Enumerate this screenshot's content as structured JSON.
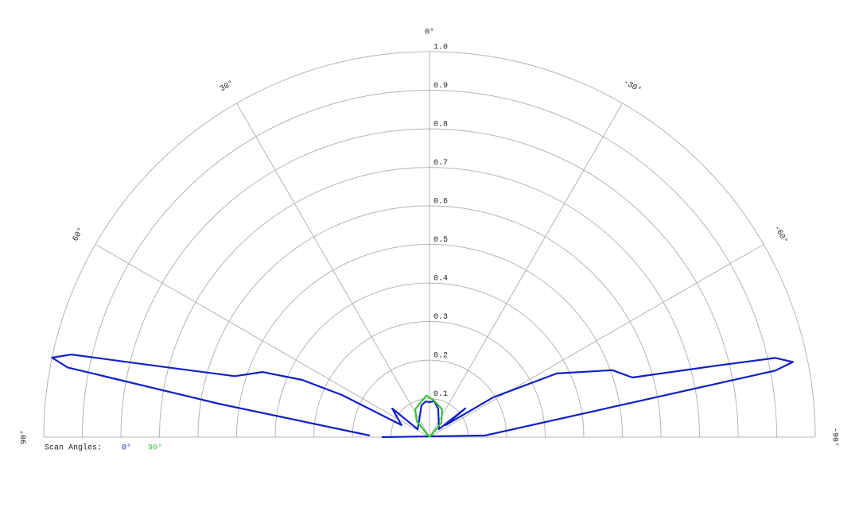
{
  "chart_data": {
    "type": "polar",
    "angle_ticks": [
      {
        "value": 90,
        "label": "90°"
      },
      {
        "value": 60,
        "label": "60°"
      },
      {
        "value": 30,
        "label": "30°"
      },
      {
        "value": 0,
        "label": "0°"
      },
      {
        "value": -30,
        "label": "-30°"
      },
      {
        "value": -60,
        "label": "-60°"
      },
      {
        "value": -90,
        "label": "-90°"
      }
    ],
    "rlim": [
      0,
      1
    ],
    "rticks": [
      0.1,
      0.2,
      0.3,
      0.4,
      0.5,
      0.6,
      0.7,
      0.8,
      0.9,
      {
        "value": 1,
        "label": "1.0"
      }
    ],
    "legend_title": "Scan Angles:",
    "series": [
      {
        "name": "0°",
        "color": "#1020c8",
        "angles": [
          88.5,
          81.0,
          79.1,
          78.1,
          77.0,
          75.1,
          72.6,
          68.7,
          65.8,
          64.3,
          66.8,
          52.5,
          56.3,
          14,
          6.3,
          0,
          -7.6,
          -17.4,
          -50,
          -51.3,
          -53.1,
          -58,
          -63.4,
          -69.9,
          -73.6,
          -76,
          -77.1,
          -78.3,
          -79.1,
          -88.4,
          90
        ],
        "values": [
          0.155,
          0.553,
          0.955,
          1.0,
          0.952,
          0.704,
          0.529,
          0.465,
          0.362,
          0.252,
          0.079,
          0.122,
          0.037,
          0.085,
          0.093,
          0.091,
          0.094,
          0.076,
          0.032,
          0.119,
          0.052,
          0.195,
          0.369,
          0.505,
          0.548,
          0.765,
          0.92,
          0.962,
          0.913,
          0.144,
          0.124
        ]
      },
      {
        "name": "90°",
        "color": "#3cc03c",
        "angles": [
          0,
          38.7,
          27.2,
          12.5,
          4.4,
          -6.1,
          -24.6,
          -39.8,
          0
        ],
        "values": [
          0,
          0.053,
          0.081,
          0.095,
          0.108,
          0.097,
          0.079,
          0.048,
          0
        ]
      }
    ]
  }
}
